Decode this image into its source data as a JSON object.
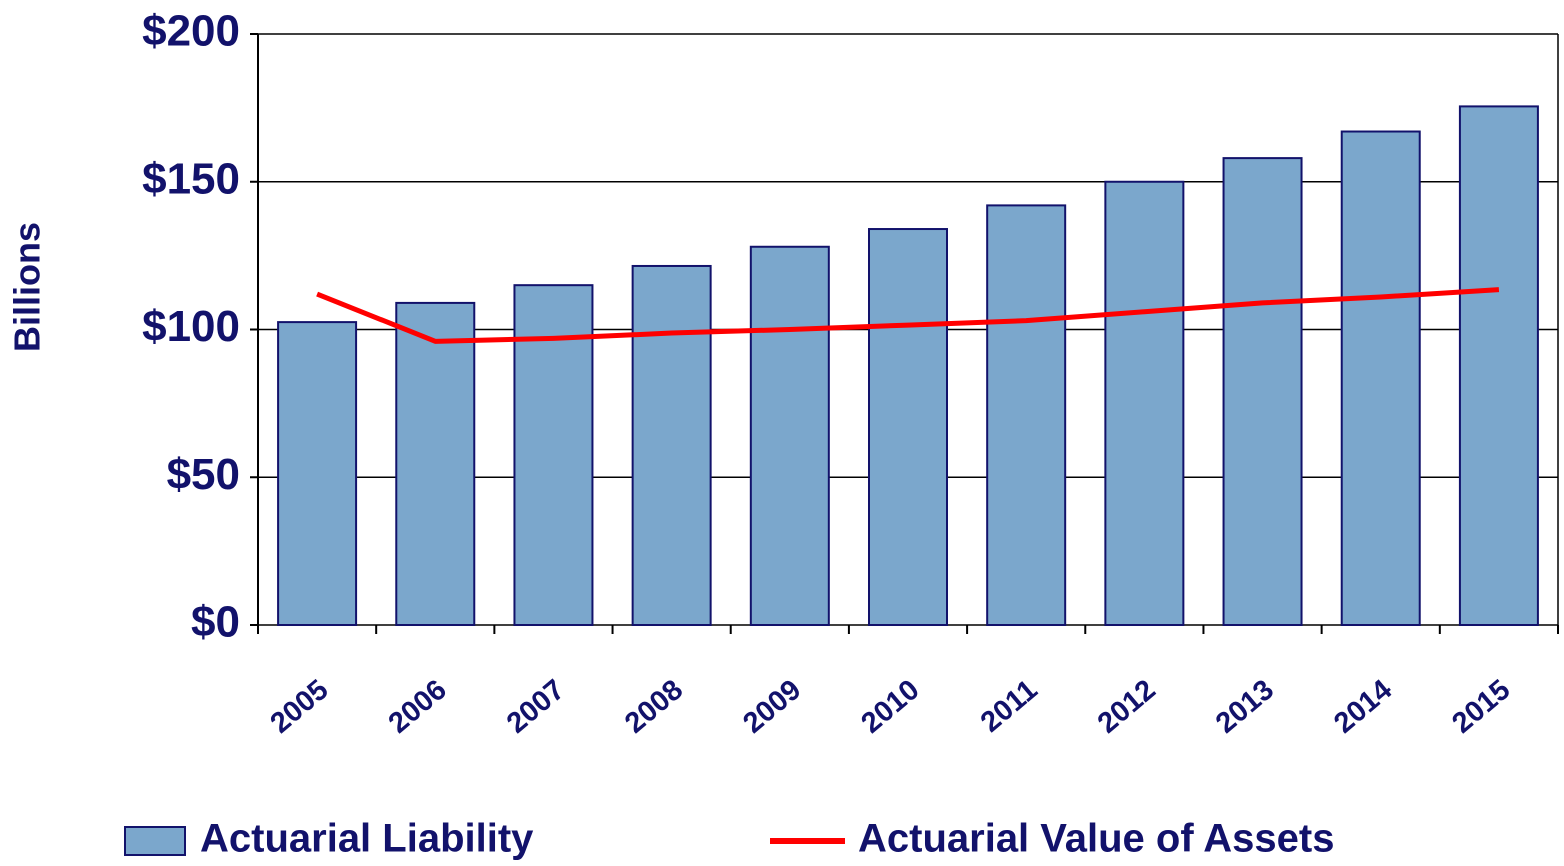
{
  "chart_data": {
    "type": "bar",
    "y_label": "Billions",
    "categories": [
      "2005",
      "2006",
      "2007",
      "2008",
      "2009",
      "2010",
      "2011",
      "2012",
      "2013",
      "2014",
      "2015"
    ],
    "series": [
      {
        "name": "Actuarial Liability",
        "type": "bar",
        "color": "#7ba7cc",
        "values": [
          102.5,
          109,
          115,
          121.5,
          128,
          134,
          142,
          150,
          158,
          167,
          175.5
        ]
      },
      {
        "name": "Actuarial Value of Assets",
        "type": "line",
        "color": "#ff0000",
        "values": [
          112,
          96,
          97,
          98.8,
          100,
          101.5,
          103,
          106,
          109,
          111,
          113.5
        ]
      }
    ],
    "ylim": [
      0,
      200
    ],
    "yticks": [
      {
        "value": 0,
        "label": "$0"
      },
      {
        "value": 50,
        "label": "$50"
      },
      {
        "value": 100,
        "label": "$100"
      },
      {
        "value": 150,
        "label": "$150"
      },
      {
        "value": 200,
        "label": "$200"
      }
    ],
    "grid": true,
    "legend": "bottom"
  }
}
